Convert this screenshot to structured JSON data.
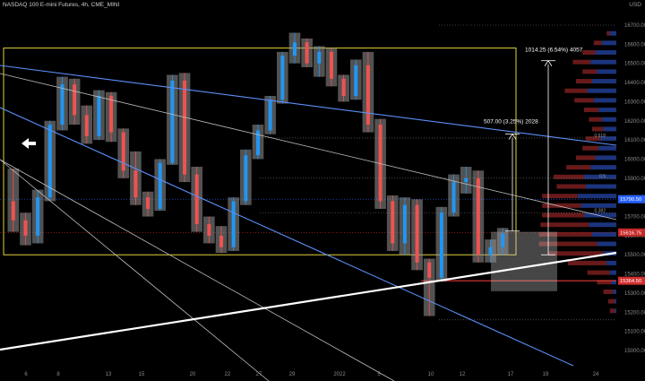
{
  "header": {
    "symbol_title": "NASDAQ 100 E-mini Futures, 4h, CME_MINI",
    "currency": "USD"
  },
  "chart_data": {
    "type": "candlestick",
    "title": "NASDAQ 100 E-mini Futures, 4h, CME_MINI",
    "ylim": [
      14900,
      16800
    ],
    "y_ticks": [
      15000,
      15100,
      15200,
      15300,
      15400,
      15500,
      15600,
      15700,
      15800,
      15900,
      16000,
      16100,
      16200,
      16300,
      16400,
      16500,
      16600,
      16700
    ],
    "x_ticks": [
      "6",
      "8",
      "13",
      "15",
      "20",
      "22",
      "27",
      "29",
      "2022",
      "5",
      "10",
      "12",
      "17",
      "19",
      "24"
    ],
    "price_badges": [
      {
        "label": "15790.50",
        "value": 15790.5,
        "color": "#2962ff"
      },
      {
        "label": "15616.75",
        "value": 15616.75,
        "color": "#c62828"
      },
      {
        "label": "15364.50",
        "value": 15364.5,
        "color": "#d32f2f"
      }
    ],
    "fib_labels": [
      {
        "label": "0.618",
        "value": 16110
      },
      {
        "label": "0.5",
        "value": 15900
      },
      {
        "label": "0.382",
        "value": 15720
      }
    ],
    "measurements": [
      {
        "label": "1014.25 (6.54%) 4057",
        "from": 15500,
        "to": 16514
      },
      {
        "label": "507.00 (3.25%) 2028",
        "from": 15624,
        "to": 16131
      }
    ],
    "series_colors": {
      "up": "#2196f3",
      "down": "#ef5350",
      "box": "#e3d23c",
      "trend": "#5b8ff9",
      "support": "#ffffff"
    },
    "candles": [
      {
        "o": 15780,
        "h": 15950,
        "l": 15620,
        "c": 15680
      },
      {
        "o": 15680,
        "h": 15720,
        "l": 15550,
        "c": 15600
      },
      {
        "o": 15600,
        "h": 15840,
        "l": 15560,
        "c": 15800
      },
      {
        "o": 15800,
        "h": 16200,
        "l": 15780,
        "c": 16180
      },
      {
        "o": 16180,
        "h": 16430,
        "l": 16150,
        "c": 16390
      },
      {
        "o": 16390,
        "h": 16420,
        "l": 16180,
        "c": 16230
      },
      {
        "o": 16230,
        "h": 16280,
        "l": 16080,
        "c": 16120
      },
      {
        "o": 16120,
        "h": 16360,
        "l": 16100,
        "c": 16330
      },
      {
        "o": 16330,
        "h": 16350,
        "l": 16090,
        "c": 16140
      },
      {
        "o": 16140,
        "h": 16160,
        "l": 15900,
        "c": 15940
      },
      {
        "o": 15940,
        "h": 16040,
        "l": 15760,
        "c": 15800
      },
      {
        "o": 15800,
        "h": 15830,
        "l": 15700,
        "c": 15740
      },
      {
        "o": 15740,
        "h": 16000,
        "l": 15730,
        "c": 15980
      },
      {
        "o": 15980,
        "h": 16440,
        "l": 15970,
        "c": 16410
      },
      {
        "o": 16410,
        "h": 16450,
        "l": 15880,
        "c": 15920
      },
      {
        "o": 15920,
        "h": 15960,
        "l": 15620,
        "c": 15660
      },
      {
        "o": 15660,
        "h": 15700,
        "l": 15560,
        "c": 15600
      },
      {
        "o": 15600,
        "h": 15650,
        "l": 15510,
        "c": 15540
      },
      {
        "o": 15540,
        "h": 15800,
        "l": 15520,
        "c": 15780
      },
      {
        "o": 15780,
        "h": 16050,
        "l": 15760,
        "c": 16020
      },
      {
        "o": 16020,
        "h": 16180,
        "l": 16000,
        "c": 16150
      },
      {
        "o": 16150,
        "h": 16330,
        "l": 16130,
        "c": 16310
      },
      {
        "o": 16310,
        "h": 16560,
        "l": 16290,
        "c": 16540
      },
      {
        "o": 16540,
        "h": 16660,
        "l": 16500,
        "c": 16610
      },
      {
        "o": 16610,
        "h": 16630,
        "l": 16480,
        "c": 16500
      },
      {
        "o": 16500,
        "h": 16590,
        "l": 16430,
        "c": 16560
      },
      {
        "o": 16560,
        "h": 16580,
        "l": 16380,
        "c": 16420
      },
      {
        "o": 16420,
        "h": 16440,
        "l": 16300,
        "c": 16330
      },
      {
        "o": 16330,
        "h": 16520,
        "l": 16310,
        "c": 16490
      },
      {
        "o": 16490,
        "h": 16560,
        "l": 16140,
        "c": 16180
      },
      {
        "o": 16180,
        "h": 16210,
        "l": 15740,
        "c": 15780
      },
      {
        "o": 15780,
        "h": 15810,
        "l": 15520,
        "c": 15560
      },
      {
        "o": 15560,
        "h": 15800,
        "l": 15500,
        "c": 15760
      },
      {
        "o": 15760,
        "h": 15790,
        "l": 15420,
        "c": 15460
      },
      {
        "o": 15460,
        "h": 15480,
        "l": 15180,
        "c": 15380
      },
      {
        "o": 15380,
        "h": 15750,
        "l": 15360,
        "c": 15720
      },
      {
        "o": 15720,
        "h": 15920,
        "l": 15700,
        "c": 15880
      },
      {
        "o": 15880,
        "h": 15960,
        "l": 15820,
        "c": 15900
      },
      {
        "o": 15900,
        "h": 15940,
        "l": 15460,
        "c": 15500
      },
      {
        "o": 15500,
        "h": 15580,
        "l": 15460,
        "c": 15540
      },
      {
        "o": 15540,
        "h": 15640,
        "l": 15500,
        "c": 15610
      }
    ],
    "volume_profile": [
      {
        "price": 16650,
        "buy": 4,
        "sell": 2
      },
      {
        "price": 16600,
        "buy": 9,
        "sell": 5
      },
      {
        "price": 16550,
        "buy": 13,
        "sell": 8
      },
      {
        "price": 16500,
        "buy": 16,
        "sell": 11
      },
      {
        "price": 16450,
        "buy": 12,
        "sell": 9
      },
      {
        "price": 16400,
        "buy": 15,
        "sell": 10
      },
      {
        "price": 16350,
        "buy": 18,
        "sell": 14
      },
      {
        "price": 16300,
        "buy": 14,
        "sell": 12
      },
      {
        "price": 16250,
        "buy": 11,
        "sell": 9
      },
      {
        "price": 16200,
        "buy": 9,
        "sell": 8
      },
      {
        "price": 16150,
        "buy": 8,
        "sell": 7
      },
      {
        "price": 16100,
        "buy": 10,
        "sell": 9
      },
      {
        "price": 16050,
        "buy": 11,
        "sell": 10
      },
      {
        "price": 16000,
        "buy": 13,
        "sell": 12
      },
      {
        "price": 15950,
        "buy": 16,
        "sell": 15
      },
      {
        "price": 15900,
        "buy": 20,
        "sell": 19
      },
      {
        "price": 15850,
        "buy": 19,
        "sell": 18
      },
      {
        "price": 15800,
        "buy": 24,
        "sell": 22
      },
      {
        "price": 15750,
        "buy": 22,
        "sell": 24
      },
      {
        "price": 15700,
        "buy": 20,
        "sell": 26
      },
      {
        "price": 15650,
        "buy": 17,
        "sell": 30
      },
      {
        "price": 15600,
        "buy": 15,
        "sell": 33
      },
      {
        "price": 15550,
        "buy": 12,
        "sell": 36
      },
      {
        "price": 15500,
        "buy": 8,
        "sell": 34
      },
      {
        "price": 15450,
        "buy": 6,
        "sell": 24
      },
      {
        "price": 15400,
        "buy": 4,
        "sell": 14
      },
      {
        "price": 15350,
        "buy": 3,
        "sell": 9
      },
      {
        "price": 15300,
        "buy": 2,
        "sell": 6
      },
      {
        "price": 15250,
        "buy": 1,
        "sell": 4
      },
      {
        "price": 15200,
        "buy": 1,
        "sell": 3
      }
    ]
  }
}
